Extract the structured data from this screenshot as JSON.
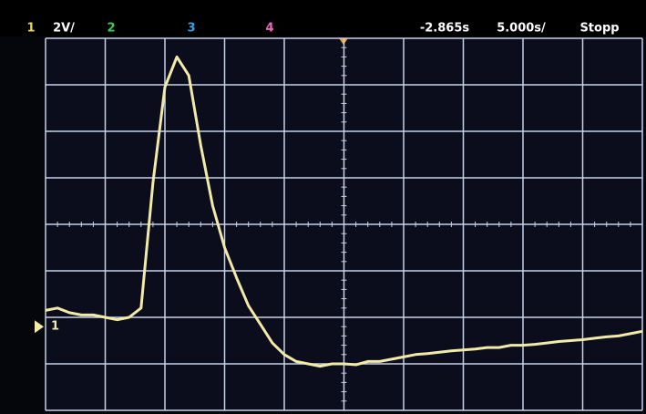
{
  "status_bar": {
    "items": [
      {
        "text": "1",
        "color": "#e8d85a"
      },
      {
        "text": "2V/",
        "color": "#ffffff"
      },
      {
        "text": "2",
        "color": "#3ecf5a"
      },
      {
        "text": "3",
        "color": "#3a9ee8"
      },
      {
        "text": "4",
        "color": "#e86ab8"
      },
      {
        "text": "-2.865s",
        "color": "#ffffff"
      },
      {
        "text": "5.000s/",
        "color": "#ffffff"
      },
      {
        "text": "Stopp",
        "color": "#ffffff"
      }
    ]
  },
  "chart_data": {
    "type": "line",
    "x": [
      -5,
      -4.8,
      -4.6,
      -4.4,
      -4.2,
      -4,
      -3.8,
      -3.6,
      -3.4,
      -3.2,
      -3,
      -2.8,
      -2.6,
      -2.4,
      -2.2,
      -2,
      -1.8,
      -1.6,
      -1.4,
      -1.2,
      -1,
      -0.8,
      -0.6,
      -0.4,
      -0.2,
      0,
      0.2,
      0.4,
      0.6,
      0.8,
      1,
      1.2,
      1.4,
      1.6,
      1.8,
      2,
      2.2,
      2.4,
      2.6,
      2.8,
      3,
      3.2,
      3.4,
      3.6,
      3.8,
      4,
      4.2,
      4.4,
      4.6,
      4.8,
      5
    ],
    "series": [
      {
        "name": "1",
        "color": "#f2eaa8",
        "values": [
          -1.85,
          -1.8,
          -1.9,
          -1.95,
          -1.95,
          -2,
          -2.05,
          -2,
          -1.8,
          0.9,
          2.95,
          3.6,
          3.2,
          1.7,
          0.4,
          -0.5,
          -1.15,
          -1.75,
          -2.15,
          -2.55,
          -2.8,
          -2.95,
          -3,
          -3.05,
          -3,
          -3,
          -3.02,
          -2.95,
          -2.95,
          -2.9,
          -2.85,
          -2.8,
          -2.78,
          -2.75,
          -2.72,
          -2.7,
          -2.68,
          -2.65,
          -2.65,
          -2.6,
          -2.6,
          -2.58,
          -2.55,
          -2.52,
          -2.5,
          -2.48,
          -2.45,
          -2.42,
          -2.4,
          -2.35,
          -2.3
        ]
      }
    ],
    "xlim": [
      -5,
      5
    ],
    "ylim": [
      -4,
      4
    ],
    "xticks": [
      -5,
      -4,
      -3,
      -2,
      -1,
      0,
      1,
      2,
      3,
      4,
      5
    ],
    "yticks": [
      -4,
      -3,
      -2,
      -1,
      0,
      1,
      2,
      3,
      4
    ],
    "grid": true,
    "ground_marker": -2.2
  }
}
